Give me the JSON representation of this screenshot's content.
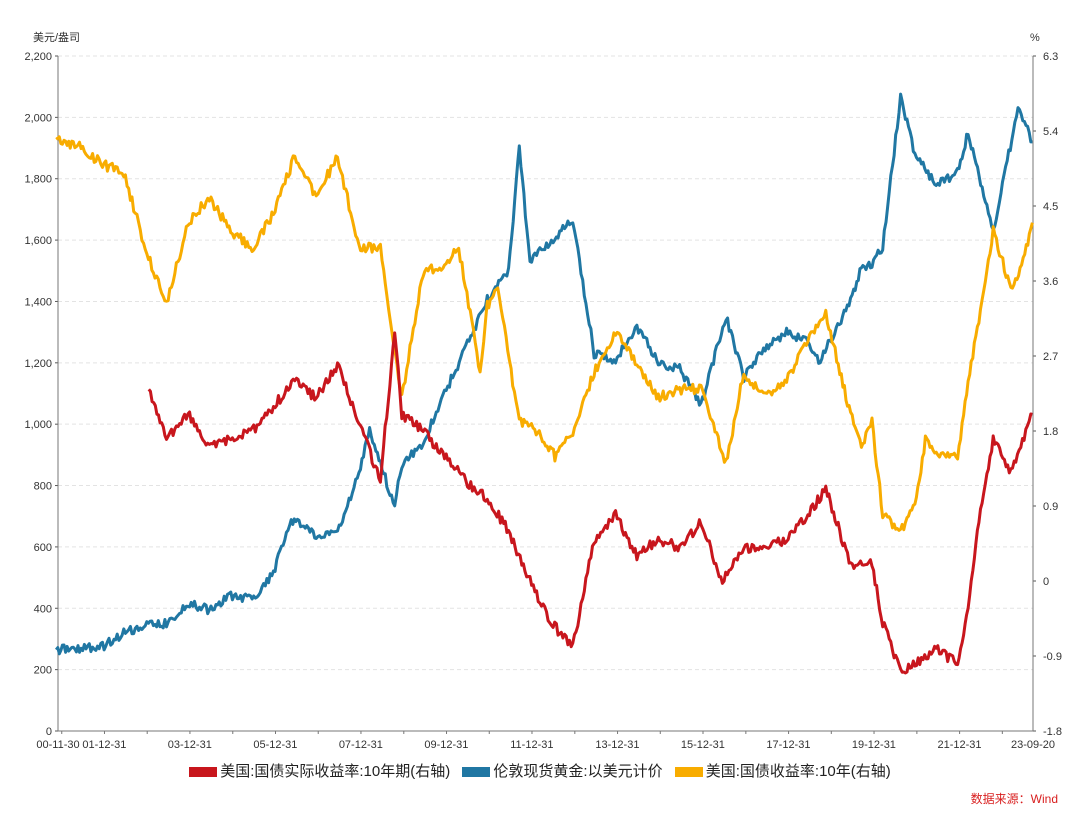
{
  "chart_data": {
    "type": "line",
    "left_unit": "美元/盎司",
    "right_unit": "%",
    "y_left_ticks": [
      "0",
      "200",
      "400",
      "600",
      "800",
      "1,000",
      "1,200",
      "1,400",
      "1,600",
      "1,800",
      "2,000",
      "2,200"
    ],
    "y_right_ticks": [
      "-1.8",
      "-0.9",
      "0",
      "0.9",
      "1.8",
      "2.7",
      "3.6",
      "4.5",
      "5.4",
      "6.3"
    ],
    "x_ticks": [
      "00-11-30",
      "01-12-31",
      "03-12-31",
      "05-12-31",
      "07-12-31",
      "09-12-31",
      "11-12-31",
      "13-12-31",
      "15-12-31",
      "17-12-31",
      "19-12-31",
      "21-12-31",
      "23-09-20"
    ],
    "ylim_left": [
      0,
      2200
    ],
    "ylim_right": [
      -1.8,
      6.3
    ],
    "grid": true,
    "legend_position": "bottom",
    "series": [
      {
        "name": "美国:国债实际收益率:10年期(右轴)",
        "axis": "right",
        "color": "#c8161d",
        "x": [
          "2003-01",
          "2003-06",
          "2003-12",
          "2004-06",
          "2004-12",
          "2005-06",
          "2005-12",
          "2006-06",
          "2006-12",
          "2007-06",
          "2007-12",
          "2008-06",
          "2008-10",
          "2008-12",
          "2009-06",
          "2009-12",
          "2010-06",
          "2010-12",
          "2011-06",
          "2011-12",
          "2012-06",
          "2012-12",
          "2013-06",
          "2013-12",
          "2014-06",
          "2014-12",
          "2015-06",
          "2015-12",
          "2016-06",
          "2016-12",
          "2017-06",
          "2017-12",
          "2018-06",
          "2018-11",
          "2019-06",
          "2019-12",
          "2020-03",
          "2020-08",
          "2020-12",
          "2021-06",
          "2021-12",
          "2022-03",
          "2022-06",
          "2022-10",
          "2023-03",
          "2023-09"
        ],
        "values": [
          2.3,
          1.7,
          2.0,
          1.6,
          1.7,
          1.8,
          2.1,
          2.4,
          2.2,
          2.6,
          1.9,
          1.2,
          3.0,
          2.0,
          1.8,
          1.5,
          1.2,
          1.0,
          0.6,
          0.0,
          -0.5,
          -0.8,
          0.5,
          0.8,
          0.3,
          0.5,
          0.4,
          0.7,
          0.0,
          0.4,
          0.4,
          0.5,
          0.8,
          1.1,
          0.2,
          0.2,
          -0.5,
          -1.1,
          -1.0,
          -0.8,
          -1.0,
          -0.3,
          0.7,
          1.7,
          1.3,
          2.0
        ]
      },
      {
        "name": "伦敦现货黄金:以美元计价",
        "axis": "left",
        "color": "#2077a3",
        "x": [
          "2000-11",
          "2001-06",
          "2001-12",
          "2002-06",
          "2002-12",
          "2003-06",
          "2003-12",
          "2004-06",
          "2004-12",
          "2005-06",
          "2005-12",
          "2006-05",
          "2006-12",
          "2007-06",
          "2007-12",
          "2008-03",
          "2008-10",
          "2008-12",
          "2009-06",
          "2009-12",
          "2010-06",
          "2010-12",
          "2011-06",
          "2011-09",
          "2011-12",
          "2012-06",
          "2012-12",
          "2013-06",
          "2013-12",
          "2014-06",
          "2014-12",
          "2015-06",
          "2015-12",
          "2016-07",
          "2016-12",
          "2017-06",
          "2017-12",
          "2018-06",
          "2018-09",
          "2019-06",
          "2019-09",
          "2019-12",
          "2020-03",
          "2020-08",
          "2020-12",
          "2021-06",
          "2021-12",
          "2022-03",
          "2022-10",
          "2023-05",
          "2023-09"
        ],
        "values": [
          265,
          270,
          275,
          320,
          345,
          350,
          415,
          395,
          440,
          430,
          515,
          690,
          635,
          650,
          835,
          980,
          730,
          870,
          940,
          1100,
          1250,
          1405,
          1505,
          1900,
          1530,
          1600,
          1665,
          1230,
          1205,
          1320,
          1200,
          1180,
          1060,
          1350,
          1150,
          1250,
          1300,
          1270,
          1200,
          1400,
          1510,
          1520,
          1580,
          2065,
          1880,
          1780,
          1820,
          1950,
          1630,
          2030,
          1920
        ]
      },
      {
        "name": "美国:国债收益率:10年(右轴)",
        "axis": "right",
        "color": "#f8ac00",
        "x": [
          "2000-11",
          "2001-06",
          "2001-12",
          "2002-06",
          "2002-12",
          "2003-06",
          "2003-12",
          "2004-06",
          "2004-12",
          "2005-06",
          "2005-12",
          "2006-06",
          "2006-12",
          "2007-06",
          "2007-12",
          "2008-06",
          "2008-12",
          "2009-06",
          "2009-12",
          "2010-04",
          "2010-10",
          "2010-12",
          "2011-03",
          "2011-09",
          "2011-12",
          "2012-07",
          "2012-12",
          "2013-06",
          "2013-12",
          "2014-06",
          "2014-12",
          "2015-06",
          "2015-12",
          "2016-07",
          "2016-12",
          "2017-06",
          "2017-12",
          "2018-06",
          "2018-11",
          "2019-06",
          "2019-09",
          "2019-12",
          "2020-03",
          "2020-08",
          "2020-12",
          "2021-03",
          "2021-06",
          "2021-12",
          "2022-03",
          "2022-06",
          "2022-10",
          "2023-03",
          "2023-06",
          "2023-09"
        ],
        "values": [
          5.3,
          5.2,
          5.0,
          4.9,
          4.0,
          3.3,
          4.3,
          4.6,
          4.2,
          4.0,
          4.4,
          5.1,
          4.6,
          5.1,
          4.0,
          4.0,
          2.2,
          3.7,
          3.8,
          4.0,
          2.5,
          3.3,
          3.5,
          1.9,
          1.9,
          1.5,
          1.8,
          2.5,
          3.0,
          2.6,
          2.2,
          2.3,
          2.3,
          1.4,
          2.5,
          2.2,
          2.4,
          2.9,
          3.2,
          2.0,
          1.6,
          1.9,
          0.8,
          0.6,
          0.9,
          1.7,
          1.5,
          1.5,
          2.4,
          3.1,
          4.2,
          3.5,
          3.8,
          4.3
        ]
      }
    ]
  },
  "legend": [
    {
      "label": "美国:国债实际收益率:10年期(右轴)",
      "color": "#c8161d"
    },
    {
      "label": "伦敦现货黄金:以美元计价",
      "color": "#2077a3"
    },
    {
      "label": "美国:国债收益率:10年(右轴)",
      "color": "#f8ac00"
    }
  ],
  "source": "数据来源：Wind"
}
